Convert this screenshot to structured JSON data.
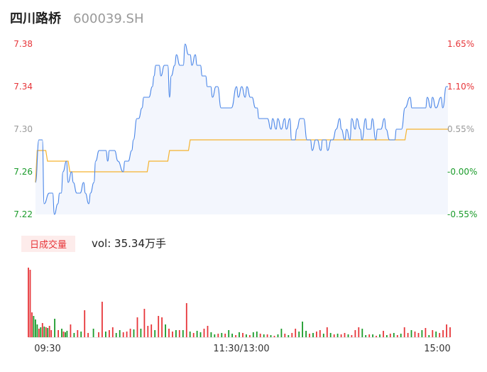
{
  "header": {
    "name": "四川路桥",
    "code": "600039.SH"
  },
  "colors": {
    "price_line": "#4a86e8",
    "avg_line": "#f5b330",
    "up": "#e7363a",
    "down": "#1a9b2a",
    "neutral": "#999999",
    "area_fill": "#f3f6fd"
  },
  "volume_panel": {
    "tag": "日成交量",
    "text": "vol: 35.34万手"
  },
  "chart_data": [
    {
      "type": "line",
      "title": "",
      "y_ticks_left": [
        "7.38",
        "7.34",
        "7.30",
        "7.26",
        "7.22"
      ],
      "y_ticks_right": [
        "1.65%",
        "1.10%",
        "0.55%",
        "-0.00%",
        "-0.55%"
      ],
      "y_tick_colors": [
        "up",
        "up",
        "neutral",
        "down",
        "down"
      ],
      "ylim": [
        7.22,
        7.38
      ],
      "prev_close": 7.26,
      "xlim": [
        0,
        240
      ],
      "series": [
        {
          "key": "price",
          "x": [
            0,
            2,
            4,
            5,
            8,
            10,
            11,
            13,
            14,
            15,
            16,
            18,
            19,
            21,
            22,
            24,
            26,
            28,
            29,
            31,
            32,
            34,
            35,
            37,
            39,
            41,
            42,
            43,
            45,
            46,
            48,
            51,
            52,
            54,
            56,
            57,
            59,
            60,
            62,
            63,
            66,
            68,
            69,
            70,
            72,
            73,
            75,
            77,
            78,
            79,
            81,
            82,
            84,
            86,
            87,
            89,
            90,
            91,
            93,
            94,
            96,
            97,
            99,
            100,
            102,
            103,
            105,
            106,
            108,
            109,
            111,
            114,
            117,
            118,
            120,
            122,
            123,
            125,
            126,
            128,
            129,
            130,
            132,
            134,
            135,
            137,
            138,
            140,
            141,
            143,
            145,
            146,
            148,
            149,
            151,
            152,
            154,
            156,
            158,
            160,
            161,
            163,
            164,
            166,
            167,
            169,
            170,
            172,
            173,
            175,
            177,
            178,
            180,
            181,
            183,
            184,
            186,
            187,
            189,
            190,
            192,
            193,
            195,
            196,
            198,
            199,
            201,
            203,
            204,
            206,
            207,
            209,
            210,
            212,
            213,
            215,
            218,
            219,
            221,
            222,
            224,
            225,
            227,
            228,
            230,
            231,
            233,
            236,
            237,
            239,
            240
          ],
          "values": [
            7.25,
            7.29,
            7.29,
            7.23,
            7.24,
            7.24,
            7.22,
            7.23,
            7.24,
            7.24,
            7.26,
            7.27,
            7.25,
            7.26,
            7.25,
            7.24,
            7.24,
            7.25,
            7.24,
            7.23,
            7.24,
            7.25,
            7.27,
            7.28,
            7.28,
            7.28,
            7.27,
            7.28,
            7.28,
            7.28,
            7.27,
            7.26,
            7.27,
            7.27,
            7.28,
            7.29,
            7.31,
            7.31,
            7.32,
            7.33,
            7.33,
            7.34,
            7.35,
            7.36,
            7.36,
            7.35,
            7.36,
            7.36,
            7.33,
            7.35,
            7.36,
            7.37,
            7.36,
            7.36,
            7.38,
            7.37,
            7.37,
            7.36,
            7.37,
            7.36,
            7.36,
            7.35,
            7.35,
            7.34,
            7.34,
            7.33,
            7.34,
            7.34,
            7.32,
            7.32,
            7.32,
            7.32,
            7.34,
            7.33,
            7.34,
            7.33,
            7.34,
            7.33,
            7.33,
            7.32,
            7.32,
            7.31,
            7.31,
            7.31,
            7.31,
            7.3,
            7.31,
            7.3,
            7.31,
            7.3,
            7.31,
            7.3,
            7.31,
            7.29,
            7.29,
            7.3,
            7.31,
            7.31,
            7.29,
            7.29,
            7.28,
            7.29,
            7.29,
            7.28,
            7.29,
            7.29,
            7.28,
            7.29,
            7.29,
            7.3,
            7.31,
            7.3,
            7.29,
            7.3,
            7.29,
            7.31,
            7.3,
            7.31,
            7.3,
            7.29,
            7.31,
            7.3,
            7.3,
            7.31,
            7.29,
            7.3,
            7.3,
            7.31,
            7.3,
            7.29,
            7.29,
            7.29,
            7.3,
            7.3,
            7.3,
            7.32,
            7.33,
            7.32,
            7.32,
            7.32,
            7.32,
            7.32,
            7.32,
            7.33,
            7.32,
            7.33,
            7.32,
            7.33,
            7.32,
            7.34,
            7.34
          ]
        },
        {
          "key": "avg",
          "x": [
            0,
            1,
            6,
            7,
            19,
            20,
            32,
            33,
            40,
            41,
            55,
            56,
            65,
            66,
            77,
            78,
            89,
            90,
            121,
            122,
            160,
            161,
            215,
            216,
            240
          ],
          "values": [
            7.25,
            7.28,
            7.28,
            7.27,
            7.27,
            7.26,
            7.26,
            7.26,
            7.26,
            7.26,
            7.26,
            7.26,
            7.26,
            7.27,
            7.27,
            7.28,
            7.28,
            7.29,
            7.29,
            7.29,
            7.29,
            7.29,
            7.29,
            7.3,
            7.3
          ]
        }
      ],
      "x_tick_labels": [
        "09:30",
        "11:30/13:00",
        "15:00"
      ],
      "volume": {
        "x": [
          0,
          1,
          2,
          3,
          4,
          5,
          6,
          7,
          8,
          9,
          10,
          11,
          12,
          13,
          15,
          17,
          19,
          20,
          21,
          22,
          24,
          26,
          28,
          30,
          32,
          34,
          37,
          40,
          42,
          44,
          46,
          48,
          50,
          52,
          54,
          56,
          58,
          60,
          62,
          64,
          66,
          68,
          70,
          72,
          74,
          76,
          78,
          80,
          82,
          84,
          86,
          88,
          90,
          92,
          94,
          96,
          98,
          100,
          102,
          104,
          106,
          108,
          110,
          112,
          114,
          116,
          118,
          120,
          122,
          124,
          126,
          128,
          130,
          132,
          134,
          136,
          138,
          140,
          142,
          144,
          146,
          148,
          150,
          152,
          154,
          156,
          158,
          160,
          162,
          164,
          166,
          168,
          170,
          172,
          174,
          176,
          178,
          180,
          182,
          184,
          186,
          188,
          190,
          192,
          194,
          196,
          198,
          200,
          202,
          204,
          206,
          208,
          210,
          212,
          214,
          216,
          218,
          220,
          222,
          224,
          226,
          228,
          230,
          232,
          234,
          236,
          238,
          240
        ],
        "values": [
          98,
          95,
          35,
          30,
          25,
          18,
          12,
          14,
          20,
          15,
          14,
          13,
          16,
          10,
          26,
          10,
          12,
          8,
          7,
          9,
          18,
          6,
          10,
          8,
          38,
          6,
          12,
          7,
          50,
          8,
          10,
          14,
          6,
          10,
          7,
          8,
          12,
          11,
          28,
          12,
          40,
          16,
          18,
          10,
          30,
          28,
          18,
          12,
          8,
          10,
          10,
          10,
          48,
          8,
          6,
          9,
          7,
          12,
          16,
          7,
          4,
          5,
          6,
          5,
          10,
          5,
          3,
          7,
          6,
          4,
          3,
          7,
          8,
          5,
          4,
          4,
          3,
          2,
          4,
          12,
          5,
          3,
          6,
          12,
          8,
          22,
          9,
          5,
          6,
          8,
          10,
          5,
          14,
          6,
          4,
          5,
          4,
          6,
          4,
          3,
          10,
          14,
          12,
          3,
          4,
          4,
          2,
          4,
          9,
          3,
          5,
          6,
          3,
          5,
          14,
          6,
          10,
          8,
          6,
          10,
          13,
          3,
          10,
          8,
          6,
          10,
          18,
          14
        ],
        "dirs": [
          "u",
          "u",
          "u",
          "d",
          "d",
          "d",
          "u",
          "d",
          "u",
          "d",
          "u",
          "d",
          "u",
          "u",
          "d",
          "u",
          "d",
          "u",
          "d",
          "d",
          "u",
          "d",
          "u",
          "d",
          "u",
          "u",
          "d",
          "u",
          "u",
          "d",
          "u",
          "u",
          "d",
          "d",
          "u",
          "u",
          "u",
          "d",
          "u",
          "d",
          "u",
          "u",
          "u",
          "d",
          "u",
          "u",
          "d",
          "u",
          "u",
          "d",
          "u",
          "d",
          "u",
          "d",
          "u",
          "d",
          "d",
          "u",
          "u",
          "d",
          "d",
          "u",
          "d",
          "u",
          "d",
          "d",
          "u",
          "d",
          "u",
          "d",
          "u",
          "d",
          "d",
          "u",
          "d",
          "u",
          "d",
          "u",
          "d",
          "d",
          "u",
          "d",
          "u",
          "u",
          "d",
          "d",
          "d",
          "u",
          "d",
          "u",
          "u",
          "d",
          "u",
          "d",
          "u",
          "d",
          "u",
          "u",
          "d",
          "u",
          "u",
          "u",
          "d",
          "d",
          "u",
          "d",
          "u",
          "d",
          "u",
          "d",
          "u",
          "d",
          "u",
          "d",
          "u",
          "u",
          "d",
          "u",
          "u",
          "d",
          "u",
          "d",
          "u",
          "d",
          "u",
          "u",
          "u",
          "u"
        ],
        "max": 100
      }
    }
  ]
}
